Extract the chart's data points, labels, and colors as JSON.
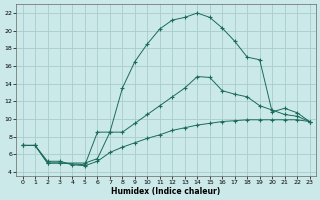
{
  "xlabel": "Humidex (Indice chaleur)",
  "xlim": [
    -0.5,
    23.5
  ],
  "ylim": [
    3.5,
    23
  ],
  "xticks": [
    0,
    1,
    2,
    3,
    4,
    5,
    6,
    7,
    8,
    9,
    10,
    11,
    12,
    13,
    14,
    15,
    16,
    17,
    18,
    19,
    20,
    21,
    22,
    23
  ],
  "yticks": [
    4,
    6,
    8,
    10,
    12,
    14,
    16,
    18,
    20,
    22
  ],
  "background_color": "#cce9e9",
  "grid_color": "#aacccc",
  "line_color": "#1a6b5a",
  "curve1_x": [
    0,
    1,
    2,
    3,
    5,
    6,
    7,
    8,
    9,
    10,
    11,
    12,
    13,
    14,
    15,
    16,
    17,
    18,
    19,
    20,
    21,
    22,
    23
  ],
  "curve1_y": [
    7,
    7,
    5,
    5,
    4.8,
    8.5,
    8.5,
    13.5,
    16.5,
    18.5,
    20.2,
    21.2,
    21.5,
    22,
    21.5,
    20.3,
    18.8,
    17,
    16.7,
    10.8,
    11.2,
    10.7,
    9.7
  ],
  "curve2_x": [
    0,
    1,
    2,
    3,
    5,
    6,
    7,
    8,
    9,
    10,
    11,
    12,
    13,
    14,
    15,
    16,
    17,
    18,
    19,
    20,
    21,
    22,
    23
  ],
  "curve2_y": [
    7,
    7,
    5,
    5,
    5,
    5.5,
    8.5,
    8.5,
    9.5,
    10.5,
    11.5,
    12.5,
    13.5,
    14.8,
    14.7,
    13.2,
    12.8,
    12.5,
    11.5,
    11,
    10.5,
    10.3,
    9.7
  ],
  "curve3_x": [
    0,
    1,
    2,
    3,
    4,
    5,
    6,
    7,
    8,
    9,
    10,
    11,
    12,
    13,
    14,
    15,
    16,
    17,
    18,
    19,
    20,
    21,
    22,
    23
  ],
  "curve3_y": [
    7,
    7,
    5.2,
    5.2,
    4.8,
    4.7,
    5.2,
    6.2,
    6.8,
    7.3,
    7.8,
    8.2,
    8.7,
    9.0,
    9.3,
    9.5,
    9.7,
    9.8,
    9.9,
    9.9,
    9.9,
    9.9,
    9.9,
    9.7
  ]
}
